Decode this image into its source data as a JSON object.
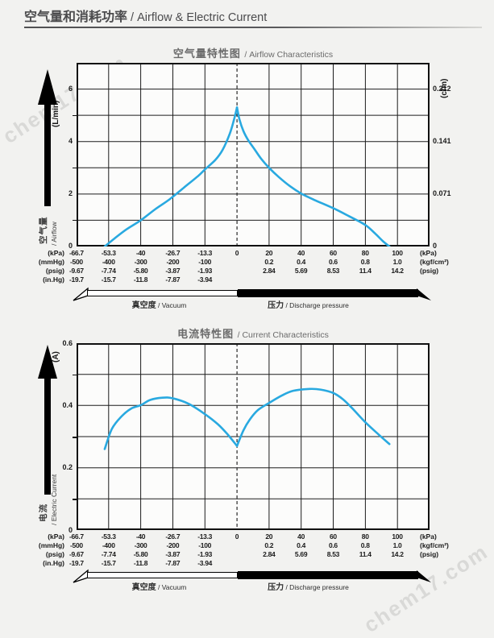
{
  "watermark": "chem17.com",
  "header": {
    "title_zh": "空气量和消耗功率",
    "title_en": " / Airflow & Electric Current"
  },
  "airflow_chart": {
    "title_zh": "空气量特性图",
    "title_en": " / Airflow Characteristics",
    "y_unit": "(L/min)",
    "y_labels": [
      "6",
      "4",
      "2",
      "0"
    ],
    "right_unit": "(cfm)",
    "right_labels": [
      "0.212",
      "0.141",
      "0.071",
      "0"
    ],
    "axis_zh": "空气量",
    "axis_en": "/ Airflow"
  },
  "current_chart": {
    "title_zh": "电流特性图",
    "title_en": " / Current Characteristics",
    "y_unit": "(A)",
    "y_labels": [
      "0.6",
      "0.4",
      "0.2",
      "0"
    ],
    "axis_zh": "电流",
    "axis_en": "/ Electric Current"
  },
  "axis_shared": {
    "left_units": [
      "(kPa)",
      "(mmHg)",
      "(psig)",
      "(in.Hg)"
    ],
    "right_units": [
      "(kPa)",
      "(kgf/cm²)",
      "(psig)",
      ""
    ],
    "rows": [
      [
        "-66.7",
        "-53.3",
        "-40",
        "-26.7",
        "-13.3",
        "0",
        "20",
        "40",
        "60",
        "80",
        "100"
      ],
      [
        "-500",
        "-400",
        "-300",
        "-200",
        "-100",
        "",
        "0.2",
        "0.4",
        "0.6",
        "0.8",
        "1.0"
      ],
      [
        "-9.67",
        "-7.74",
        "-5.80",
        "-3.87",
        "-1.93",
        "",
        "2.84",
        "5.69",
        "8.53",
        "11.4",
        "14.2"
      ],
      [
        "-19.7",
        "-15.7",
        "-11.8",
        "-7.87",
        "-3.94",
        "",
        "",
        "",
        "",
        "",
        ""
      ]
    ],
    "bar": {
      "vacuum_zh": "真空度",
      "vacuum_en": " / Vacuum",
      "pressure_zh": "压力",
      "pressure_en": " / Discharge pressure"
    }
  },
  "chart_data": [
    {
      "type": "line",
      "title": "空气量特性图 / Airflow Characteristics",
      "xlabel": "Pressure (kPa): vacuum -66.7…0, discharge 0…100",
      "ylabel": "空气量 / Airflow (L/min)",
      "xlim": [
        -66.7,
        120
      ],
      "ylim": [
        0,
        7
      ],
      "grid": true,
      "legend_position": "none",
      "x_ticks_kpa": [
        -66.7,
        -53.3,
        -40,
        -26.7,
        -13.3,
        0,
        20,
        40,
        60,
        80,
        100
      ],
      "y_ticks": [
        0,
        2,
        4,
        6
      ],
      "right_axis_cfm_pairs": [
        [
          6,
          0.212
        ],
        [
          4,
          0.141
        ],
        [
          2,
          0.071
        ],
        [
          0,
          0
        ]
      ],
      "series": [
        {
          "name": "vacuum side",
          "points": [
            [
              -55,
              0
            ],
            [
              -51,
              0.3
            ],
            [
              -46,
              0.65
            ],
            [
              -40,
              1.0
            ],
            [
              -34,
              1.42
            ],
            [
              -28,
              1.8
            ],
            [
              -22,
              2.25
            ],
            [
              -16,
              2.7
            ],
            [
              -13.3,
              2.94
            ],
            [
              -9,
              3.3
            ],
            [
              -6,
              3.68
            ],
            [
              -3,
              4.3
            ],
            [
              -1.2,
              4.85
            ],
            [
              0,
              5.3
            ]
          ]
        },
        {
          "name": "pressure side",
          "points": [
            [
              0,
              5.3
            ],
            [
              1.5,
              4.85
            ],
            [
              4,
              4.4
            ],
            [
              7,
              4.05
            ],
            [
              11,
              3.7
            ],
            [
              15,
              3.35
            ],
            [
              20,
              3.0
            ],
            [
              26,
              2.65
            ],
            [
              33,
              2.3
            ],
            [
              40,
              2.02
            ],
            [
              48,
              1.78
            ],
            [
              60,
              1.46
            ],
            [
              70,
              1.15
            ],
            [
              80,
              0.82
            ],
            [
              86,
              0.5
            ],
            [
              91,
              0.2
            ],
            [
              95,
              0
            ]
          ]
        }
      ]
    },
    {
      "type": "line",
      "title": "电流特性图 / Current Characteristics",
      "xlabel": "Pressure (kPa): vacuum -66.7…0, discharge 0…100",
      "ylabel": "电流 / Electric Current (A)",
      "xlim": [
        -66.7,
        120
      ],
      "ylim": [
        0,
        0.6
      ],
      "grid": true,
      "legend_position": "none",
      "x_ticks_kpa": [
        -66.7,
        -53.3,
        -40,
        -26.7,
        -13.3,
        0,
        20,
        40,
        60,
        80,
        100
      ],
      "y_ticks": [
        0,
        0.2,
        0.4,
        0.6
      ],
      "series": [
        {
          "name": "vacuum side",
          "points": [
            [
              -55,
              0.26
            ],
            [
              -52,
              0.325
            ],
            [
              -48,
              0.365
            ],
            [
              -44,
              0.39
            ],
            [
              -40,
              0.401
            ],
            [
              -36,
              0.418
            ],
            [
              -31,
              0.425
            ],
            [
              -26.7,
              0.423
            ],
            [
              -20,
              0.405
            ],
            [
              -13.3,
              0.372
            ],
            [
              -8,
              0.34
            ],
            [
              -4,
              0.308
            ],
            [
              0,
              0.27
            ]
          ]
        },
        {
          "name": "pressure side",
          "points": [
            [
              0,
              0.27
            ],
            [
              4,
              0.32
            ],
            [
              8,
              0.355
            ],
            [
              13,
              0.385
            ],
            [
              20,
              0.408
            ],
            [
              28,
              0.432
            ],
            [
              35,
              0.447
            ],
            [
              45,
              0.453
            ],
            [
              52,
              0.451
            ],
            [
              60,
              0.44
            ],
            [
              66,
              0.42
            ],
            [
              72,
              0.39
            ],
            [
              80,
              0.346
            ],
            [
              88,
              0.308
            ],
            [
              95,
              0.276
            ]
          ]
        }
      ]
    }
  ]
}
